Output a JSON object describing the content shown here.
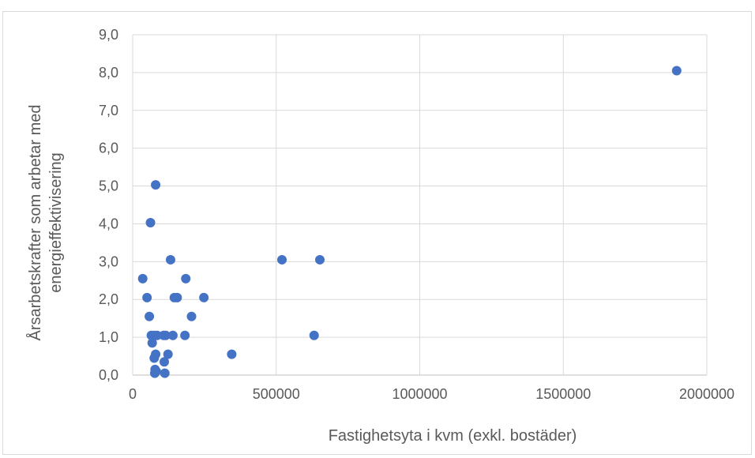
{
  "chart_data": {
    "type": "scatter",
    "title": "",
    "xlabel": "Fastighetsyta i kvm (exkl. bostäder)",
    "ylabel_lines": [
      "Årsarbetskrafter som arbetar med",
      "energieffektivisering"
    ],
    "xlim": [
      0,
      2000000
    ],
    "ylim": [
      0,
      9
    ],
    "x_ticks": [
      0,
      500000,
      1000000,
      1500000,
      2000000
    ],
    "x_tick_labels": [
      "0",
      "500000",
      "1000000",
      "1500000",
      "2000000"
    ],
    "y_ticks": [
      0,
      1,
      2,
      3,
      4,
      5,
      6,
      7,
      8,
      9
    ],
    "y_tick_labels": [
      "0,0",
      "1,0",
      "2,0",
      "3,0",
      "4,0",
      "5,0",
      "6,0",
      "7,0",
      "8,0",
      "9,0"
    ],
    "grid": true,
    "legend": "none",
    "marker_color": "#4472c4",
    "points": [
      {
        "x": 1895000,
        "y": 8.05
      },
      {
        "x": 80000,
        "y": 5.03
      },
      {
        "x": 62000,
        "y": 4.03
      },
      {
        "x": 132000,
        "y": 3.05
      },
      {
        "x": 520000,
        "y": 3.05
      },
      {
        "x": 652000,
        "y": 3.05
      },
      {
        "x": 35000,
        "y": 2.55
      },
      {
        "x": 185000,
        "y": 2.55
      },
      {
        "x": 50000,
        "y": 2.05
      },
      {
        "x": 145000,
        "y": 2.05
      },
      {
        "x": 155000,
        "y": 2.05
      },
      {
        "x": 248000,
        "y": 2.05
      },
      {
        "x": 58000,
        "y": 1.55
      },
      {
        "x": 205000,
        "y": 1.55
      },
      {
        "x": 65000,
        "y": 1.05
      },
      {
        "x": 75000,
        "y": 1.05
      },
      {
        "x": 85000,
        "y": 1.05
      },
      {
        "x": 108000,
        "y": 1.05
      },
      {
        "x": 115000,
        "y": 1.05
      },
      {
        "x": 140000,
        "y": 1.05
      },
      {
        "x": 182000,
        "y": 1.05
      },
      {
        "x": 632000,
        "y": 1.05
      },
      {
        "x": 68000,
        "y": 0.85
      },
      {
        "x": 80000,
        "y": 0.55
      },
      {
        "x": 123000,
        "y": 0.55
      },
      {
        "x": 345000,
        "y": 0.55
      },
      {
        "x": 75000,
        "y": 0.45
      },
      {
        "x": 110000,
        "y": 0.35
      },
      {
        "x": 78000,
        "y": 0.15
      },
      {
        "x": 82000,
        "y": 0.1
      },
      {
        "x": 112000,
        "y": 0.05
      },
      {
        "x": 77000,
        "y": 0.05
      }
    ]
  }
}
